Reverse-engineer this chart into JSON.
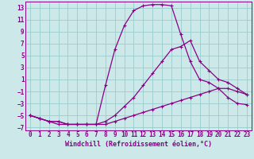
{
  "xlabel": "Windchill (Refroidissement éolien,°C)",
  "bg_color": "#cce8e8",
  "line_color": "#880088",
  "grid_color": "#99cccc",
  "xlim": [
    -0.5,
    23.5
  ],
  "ylim": [
    -7.5,
    14
  ],
  "xticks": [
    0,
    1,
    2,
    3,
    4,
    5,
    6,
    7,
    8,
    9,
    10,
    11,
    12,
    13,
    14,
    15,
    16,
    17,
    18,
    19,
    20,
    21,
    22,
    23
  ],
  "yticks": [
    -7,
    -5,
    -3,
    -1,
    1,
    3,
    5,
    7,
    9,
    11,
    13
  ],
  "series1_x": [
    0,
    1,
    2,
    3,
    4,
    5,
    6,
    7,
    8,
    9,
    10,
    11,
    12,
    13,
    14,
    15,
    16,
    17,
    18,
    19,
    20,
    21,
    22,
    23
  ],
  "series1_y": [
    -5,
    -5.5,
    -6,
    -6,
    -6.5,
    -6.5,
    -6.5,
    -6.5,
    -6.5,
    -6,
    -5.5,
    -5,
    -4.5,
    -4,
    -3.5,
    -3,
    -2.5,
    -2,
    -1.5,
    -1,
    -0.5,
    -0.5,
    -1,
    -1.5
  ],
  "series2_x": [
    0,
    1,
    2,
    3,
    4,
    5,
    6,
    7,
    8,
    9,
    10,
    11,
    12,
    13,
    14,
    15,
    16,
    17,
    18,
    19,
    20,
    21,
    22,
    23
  ],
  "series2_y": [
    -5,
    -5.5,
    -6,
    -6,
    -6.5,
    -6.5,
    -6.5,
    -6.5,
    -6,
    -5,
    -3.5,
    -2,
    0,
    2,
    4,
    6,
    6.5,
    7.5,
    4,
    2.5,
    1,
    0.5,
    -0.5,
    -1.5
  ],
  "series3_x": [
    0,
    1,
    2,
    3,
    4,
    5,
    6,
    7,
    8,
    9,
    10,
    11,
    12,
    13,
    14,
    15,
    16,
    17,
    18,
    19,
    20,
    21,
    22,
    23
  ],
  "series3_y": [
    -5,
    -5.5,
    -6,
    -6.5,
    -6.5,
    -6.5,
    -6.5,
    -6.5,
    0,
    6,
    10,
    12.5,
    13.3,
    13.5,
    13.5,
    13.3,
    8.5,
    4,
    1,
    0.5,
    -0.5,
    -2,
    -3,
    -3.2
  ],
  "xlabel_fontsize": 6,
  "tick_fontsize": 5.5
}
